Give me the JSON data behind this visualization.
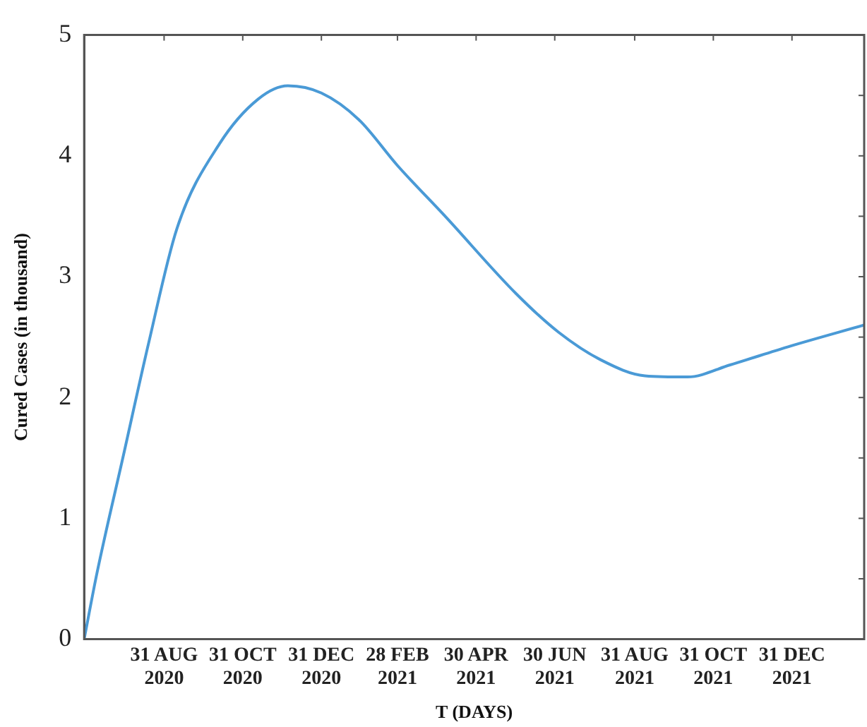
{
  "chart_data": {
    "type": "line",
    "xlabel": "T (DAYS)",
    "ylabel": "Cured Cases (in thousand)",
    "x": [
      "2020-06-30",
      "2020-07-10",
      "2020-07-30",
      "2020-08-19",
      "2020-09-10",
      "2020-10-13",
      "2020-11-12",
      "2020-12-05",
      "2020-12-31",
      "2021-01-29",
      "2021-02-28",
      "2021-04-06",
      "2021-05-31",
      "2021-07-03",
      "2021-08-05",
      "2021-09-08",
      "2021-10-11",
      "2021-11-13",
      "2021-12-28",
      "2022-02-25"
    ],
    "series": [
      {
        "color": "#4a9ad6",
        "values": [
          0,
          0.55,
          1.5,
          2.45,
          3.4,
          4.1,
          4.47,
          4.58,
          4.52,
          4.3,
          3.92,
          3.5,
          2.86,
          2.54,
          2.31,
          2.18,
          2.17,
          2.27,
          2.42,
          2.6
        ]
      }
    ],
    "xlim": [
      "2020-06-30",
      "2022-02-25"
    ],
    "xticks": [
      {
        "value": "2020-08-31",
        "label": "31 AUG 2020"
      },
      {
        "value": "2020-10-31",
        "label": "31 OCT 2020"
      },
      {
        "value": "2020-12-31",
        "label": "31 DEC 2020"
      },
      {
        "value": "2021-02-28",
        "label": "28 FEB 2021"
      },
      {
        "value": "2021-04-30",
        "label": "30 APR 2021"
      },
      {
        "value": "2021-06-30",
        "label": "30 JUN 2021"
      },
      {
        "value": "2021-08-31",
        "label": "31 AUG 2021"
      },
      {
        "value": "2021-10-31",
        "label": "31 OCT 2021"
      },
      {
        "value": "2021-12-31",
        "label": "31 DEC 2021"
      }
    ],
    "ylim": [
      0,
      5
    ],
    "yticks": [
      0,
      {
        "value": 0.5,
        "label": null
      },
      1,
      {
        "value": 1.5,
        "label": null
      },
      2,
      {
        "value": 2.5,
        "label": null
      },
      3,
      {
        "value": 3.5,
        "label": null
      },
      4,
      {
        "value": 4.5,
        "label": null
      },
      5
    ],
    "grid": false,
    "legend": false,
    "marker": "none",
    "line_style": "solid"
  }
}
